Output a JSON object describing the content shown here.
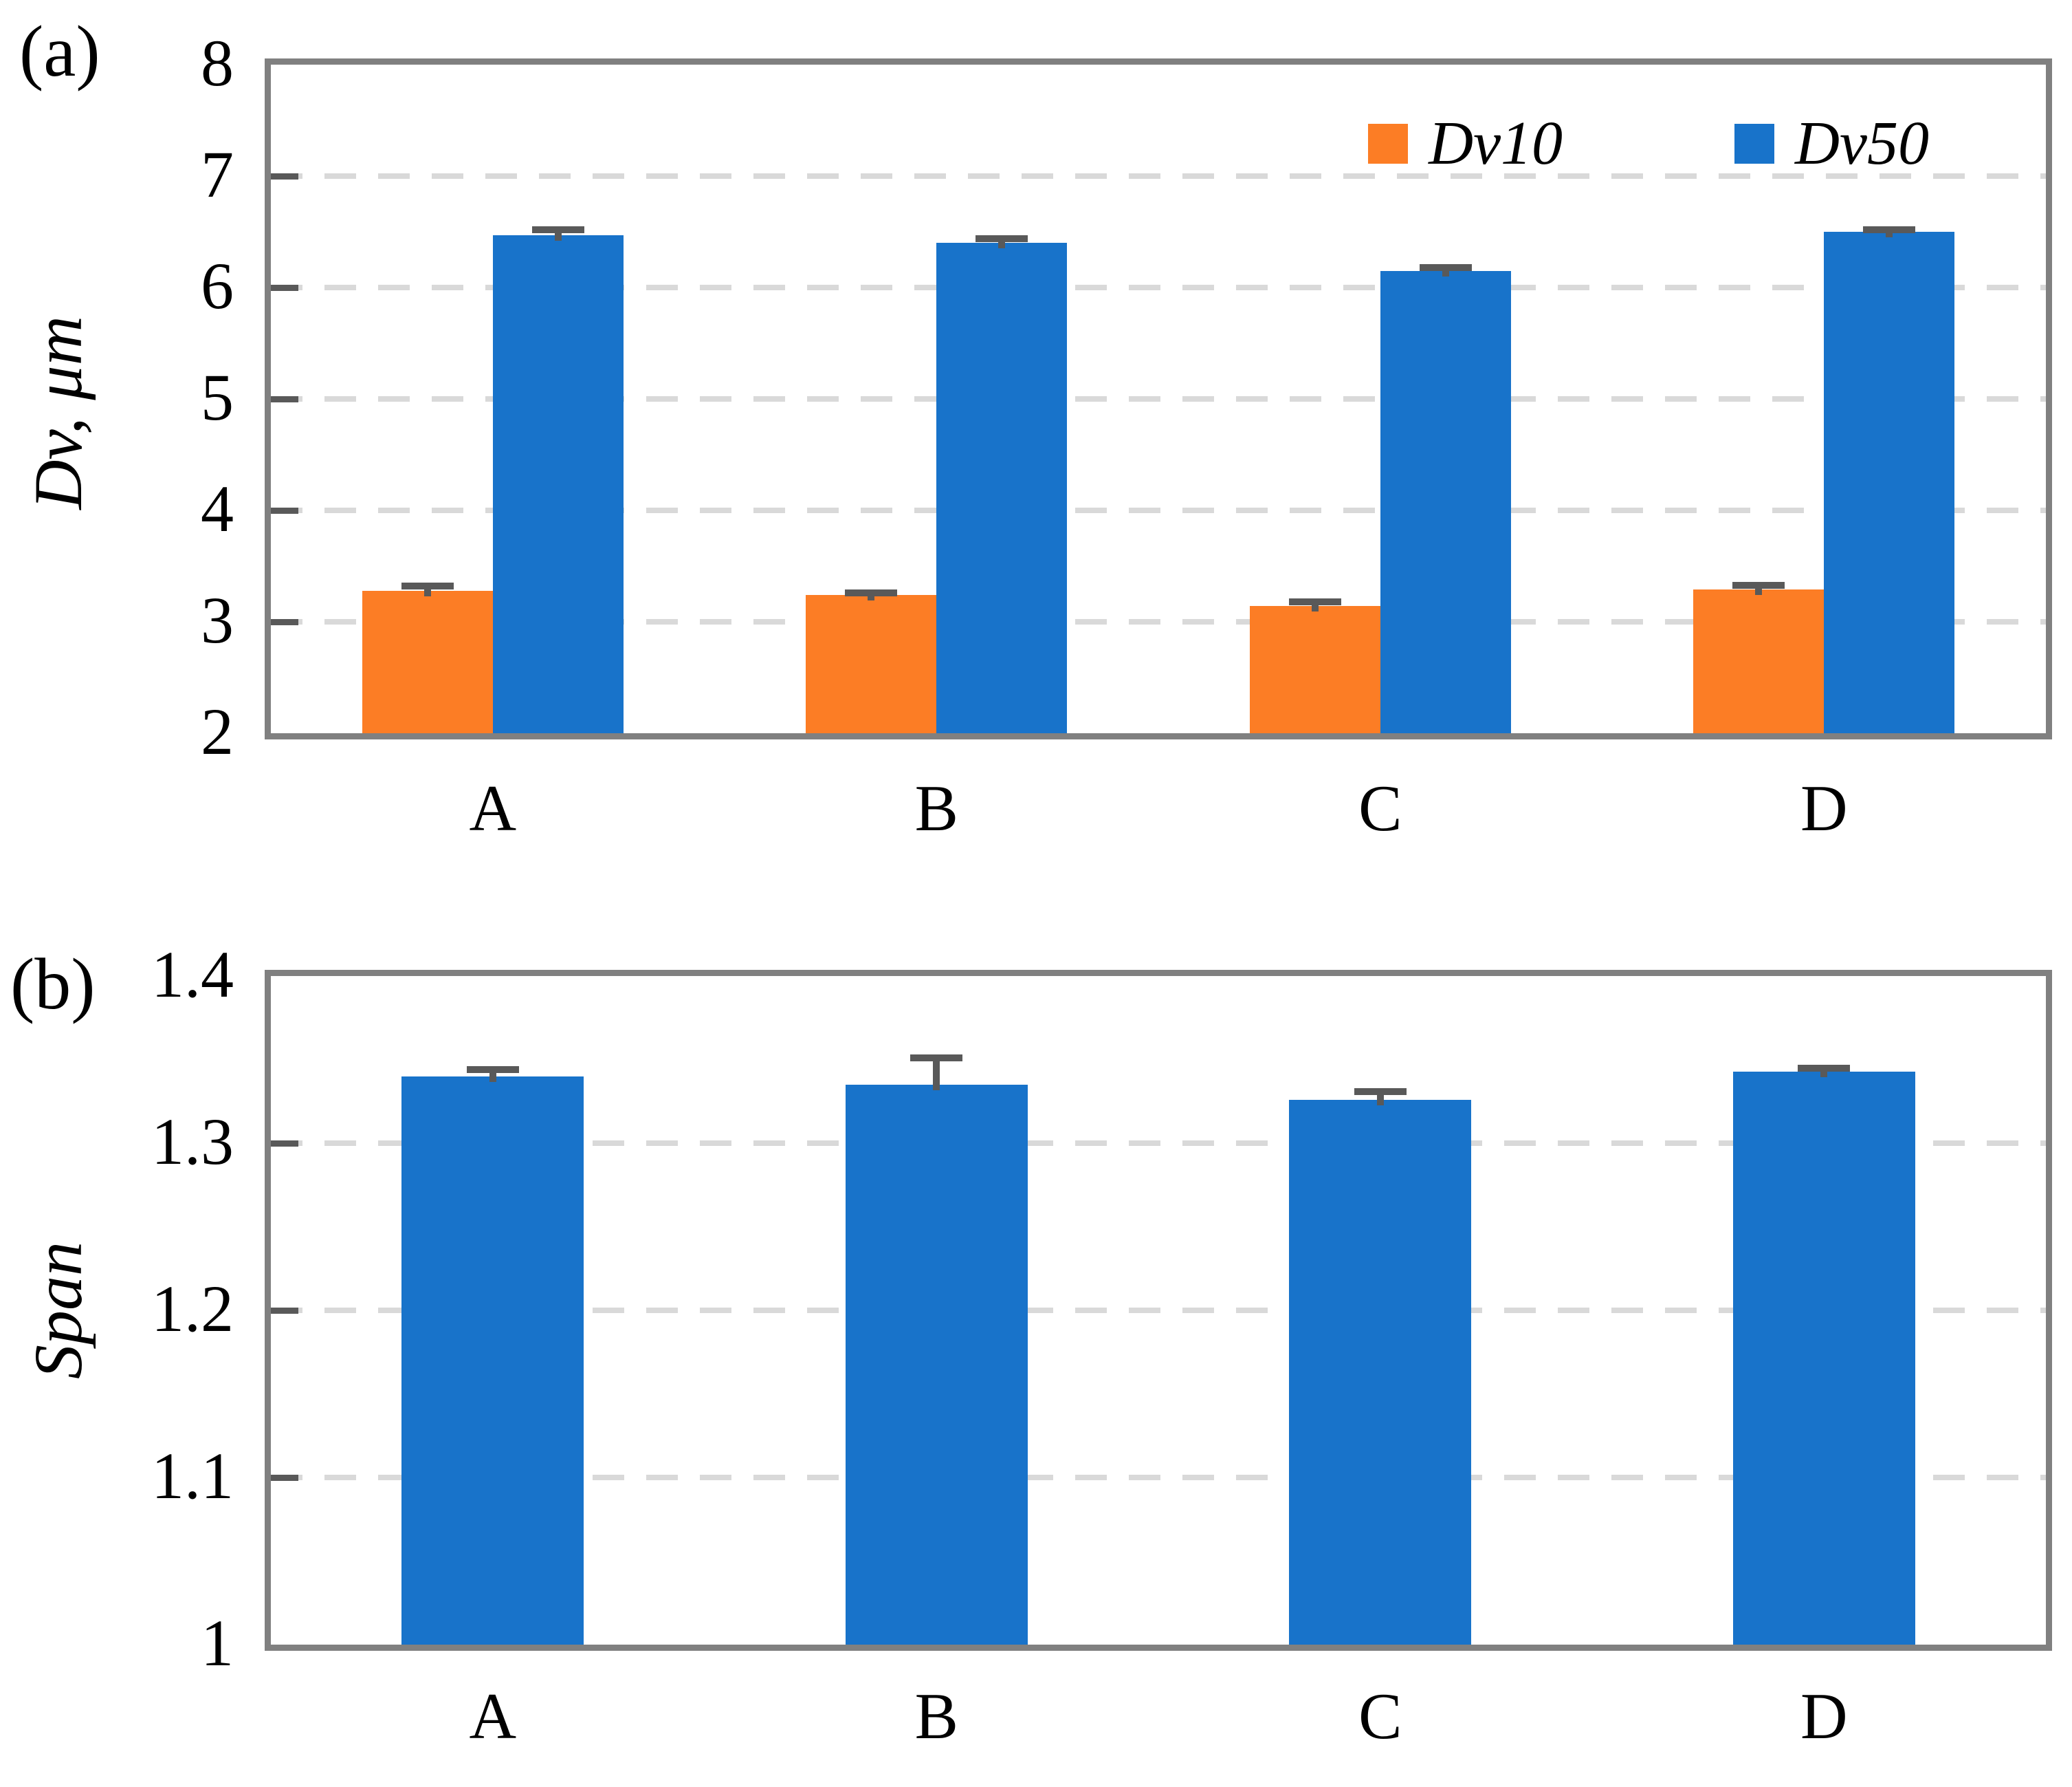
{
  "chart_data": [
    {
      "id": "a",
      "type": "bar",
      "panel_label": "(a)",
      "ylabel": "Dv, μm",
      "categories": [
        "A",
        "B",
        "C",
        "D"
      ],
      "ylim": [
        2,
        8
      ],
      "yticks": [
        8,
        7,
        6,
        5,
        4,
        3,
        2
      ],
      "ytick_labels": [
        "8",
        "7",
        "6",
        "5",
        "4",
        "3",
        "2"
      ],
      "grid": "horizontal dashed at 3,4,5,6,7",
      "legend_position": "top-right inside plot",
      "series": [
        {
          "name": "Dv10",
          "color": "#FC7D25",
          "values": [
            3.28,
            3.24,
            3.14,
            3.29
          ],
          "errors_plus": [
            0.04,
            0.02,
            0.04,
            0.04
          ]
        },
        {
          "name": "Dv50",
          "color": "#1873CA",
          "values": [
            6.47,
            6.4,
            6.15,
            6.5
          ],
          "errors_plus": [
            0.05,
            0.04,
            0.03,
            0.02
          ]
        }
      ]
    },
    {
      "id": "b",
      "type": "bar",
      "panel_label": "(b)",
      "ylabel": "Span",
      "categories": [
        "A",
        "B",
        "C",
        "D"
      ],
      "ylim": [
        1,
        1.4
      ],
      "yticks": [
        1.4,
        1.3,
        1.2,
        1.1,
        1
      ],
      "ytick_labels": [
        "1.4",
        "1.3",
        "1.2",
        "1.1",
        "1"
      ],
      "grid": "horizontal dashed at 1.1,1.2,1.3",
      "legend_position": "none",
      "series": [
        {
          "name": "Span",
          "color": "#1873CA",
          "values": [
            1.34,
            1.335,
            1.326,
            1.343
          ],
          "errors_plus": [
            0.004,
            0.016,
            0.005,
            0.002
          ]
        }
      ]
    }
  ],
  "colors": {
    "bar_orange": "#FC7D25",
    "bar_blue": "#1873CA",
    "plot_border": "#808080",
    "gridline": "#D9D9D9",
    "tick_mark": "#595959",
    "error_bar": "#595959",
    "background": "#FFFFFF",
    "text": "#000000"
  }
}
